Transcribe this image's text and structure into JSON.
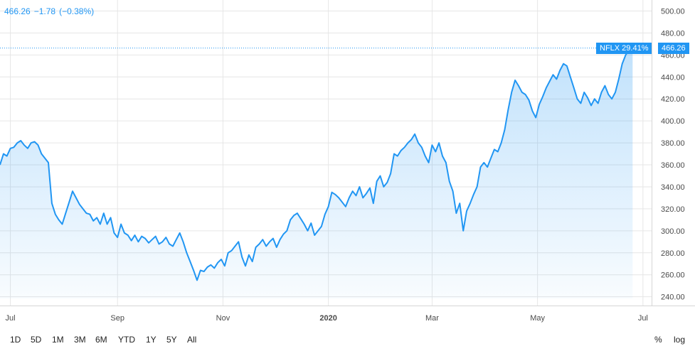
{
  "legend": {
    "last_price": "466.26",
    "change": "−1.78",
    "change_pct": "(−0.38%)"
  },
  "tags": {
    "symbol_label": "NFLX 29.41%",
    "price_label": "466.26"
  },
  "colors": {
    "line": "#2196f3",
    "fill": "#2196f3",
    "grid": "#e6e6e6",
    "tag_bg": "#2196f3"
  },
  "toolbar": {
    "ranges": [
      "1D",
      "5D",
      "1M",
      "3M",
      "6M",
      "YTD",
      "1Y",
      "5Y",
      "All"
    ],
    "percent_label": "%",
    "log_label": "log"
  },
  "chart_data": {
    "type": "area",
    "ylim": [
      232,
      510
    ],
    "xlim": [
      "2019-06-25",
      "2020-07-06"
    ],
    "price_axis_ticks": [
      "500.00",
      "480.00",
      "460.00",
      "440.00",
      "420.00",
      "400.00",
      "380.00",
      "360.00",
      "340.00",
      "320.00",
      "300.00",
      "280.00",
      "260.00",
      "240.00"
    ],
    "price_axis_values": [
      500,
      480,
      460,
      440,
      420,
      400,
      380,
      360,
      340,
      320,
      300,
      280,
      260,
      240
    ],
    "time_axis_ticks": [
      {
        "label": "Jul",
        "date": "2019-07-01",
        "bold": false
      },
      {
        "label": "Sep",
        "date": "2019-09-01",
        "bold": false
      },
      {
        "label": "Nov",
        "date": "2019-11-01",
        "bold": false
      },
      {
        "label": "2020",
        "date": "2020-01-01",
        "bold": true
      },
      {
        "label": "Mar",
        "date": "2020-03-01",
        "bold": false
      },
      {
        "label": "May",
        "date": "2020-05-01",
        "bold": false
      },
      {
        "label": "Jul",
        "date": "2020-07-01",
        "bold": false
      }
    ],
    "last_value": 466.26,
    "series": [
      {
        "points": [
          [
            "2019-06-25",
            360
          ],
          [
            "2019-06-27",
            370
          ],
          [
            "2019-06-29",
            368
          ],
          [
            "2019-07-01",
            375
          ],
          [
            "2019-07-03",
            376
          ],
          [
            "2019-07-05",
            380
          ],
          [
            "2019-07-07",
            382
          ],
          [
            "2019-07-09",
            378
          ],
          [
            "2019-07-11",
            375
          ],
          [
            "2019-07-13",
            380
          ],
          [
            "2019-07-15",
            381
          ],
          [
            "2019-07-17",
            378
          ],
          [
            "2019-07-19",
            370
          ],
          [
            "2019-07-21",
            366
          ],
          [
            "2019-07-23",
            362
          ],
          [
            "2019-07-25",
            325
          ],
          [
            "2019-07-27",
            315
          ],
          [
            "2019-07-29",
            310
          ],
          [
            "2019-07-31",
            306
          ],
          [
            "2019-08-02",
            316
          ],
          [
            "2019-08-04",
            326
          ],
          [
            "2019-08-06",
            336
          ],
          [
            "2019-08-08",
            330
          ],
          [
            "2019-08-10",
            324
          ],
          [
            "2019-08-12",
            320
          ],
          [
            "2019-08-14",
            316
          ],
          [
            "2019-08-16",
            315
          ],
          [
            "2019-08-18",
            309
          ],
          [
            "2019-08-20",
            312
          ],
          [
            "2019-08-22",
            306
          ],
          [
            "2019-08-24",
            316
          ],
          [
            "2019-08-26",
            306
          ],
          [
            "2019-08-28",
            312
          ],
          [
            "2019-08-30",
            298
          ],
          [
            "2019-09-01",
            294
          ],
          [
            "2019-09-03",
            306
          ],
          [
            "2019-09-05",
            298
          ],
          [
            "2019-09-07",
            296
          ],
          [
            "2019-09-09",
            291
          ],
          [
            "2019-09-11",
            296
          ],
          [
            "2019-09-13",
            290
          ],
          [
            "2019-09-15",
            295
          ],
          [
            "2019-09-17",
            293
          ],
          [
            "2019-09-19",
            289
          ],
          [
            "2019-09-21",
            292
          ],
          [
            "2019-09-23",
            295
          ],
          [
            "2019-09-25",
            288
          ],
          [
            "2019-09-27",
            290
          ],
          [
            "2019-09-29",
            294
          ],
          [
            "2019-10-01",
            288
          ],
          [
            "2019-10-03",
            286
          ],
          [
            "2019-10-05",
            292
          ],
          [
            "2019-10-07",
            298
          ],
          [
            "2019-10-09",
            290
          ],
          [
            "2019-10-11",
            280
          ],
          [
            "2019-10-13",
            272
          ],
          [
            "2019-10-15",
            264
          ],
          [
            "2019-10-17",
            255
          ],
          [
            "2019-10-19",
            264
          ],
          [
            "2019-10-21",
            263
          ],
          [
            "2019-10-23",
            267
          ],
          [
            "2019-10-25",
            269
          ],
          [
            "2019-10-27",
            266
          ],
          [
            "2019-10-29",
            271
          ],
          [
            "2019-10-31",
            274
          ],
          [
            "2019-11-02",
            268
          ],
          [
            "2019-11-04",
            280
          ],
          [
            "2019-11-06",
            282
          ],
          [
            "2019-11-08",
            286
          ],
          [
            "2019-11-10",
            290
          ],
          [
            "2019-11-12",
            276
          ],
          [
            "2019-11-14",
            268
          ],
          [
            "2019-11-16",
            278
          ],
          [
            "2019-11-18",
            272
          ],
          [
            "2019-11-20",
            285
          ],
          [
            "2019-11-22",
            288
          ],
          [
            "2019-11-24",
            292
          ],
          [
            "2019-11-26",
            286
          ],
          [
            "2019-11-28",
            290
          ],
          [
            "2019-11-30",
            293
          ],
          [
            "2019-12-02",
            285
          ],
          [
            "2019-12-04",
            292
          ],
          [
            "2019-12-06",
            297
          ],
          [
            "2019-12-08",
            300
          ],
          [
            "2019-12-10",
            310
          ],
          [
            "2019-12-12",
            314
          ],
          [
            "2019-12-14",
            316
          ],
          [
            "2019-12-16",
            311
          ],
          [
            "2019-12-18",
            306
          ],
          [
            "2019-12-20",
            300
          ],
          [
            "2019-12-22",
            307
          ],
          [
            "2019-12-24",
            296
          ],
          [
            "2019-12-26",
            300
          ],
          [
            "2019-12-28",
            304
          ],
          [
            "2019-12-30",
            315
          ],
          [
            "2020-01-01",
            322
          ],
          [
            "2020-01-03",
            335
          ],
          [
            "2020-01-05",
            333
          ],
          [
            "2020-01-07",
            330
          ],
          [
            "2020-01-09",
            326
          ],
          [
            "2020-01-11",
            322
          ],
          [
            "2020-01-13",
            330
          ],
          [
            "2020-01-15",
            336
          ],
          [
            "2020-01-17",
            332
          ],
          [
            "2020-01-19",
            340
          ],
          [
            "2020-01-21",
            330
          ],
          [
            "2020-01-23",
            334
          ],
          [
            "2020-01-25",
            339
          ],
          [
            "2020-01-27",
            325
          ],
          [
            "2020-01-29",
            345
          ],
          [
            "2020-01-31",
            350
          ],
          [
            "2020-02-02",
            340
          ],
          [
            "2020-02-04",
            344
          ],
          [
            "2020-02-06",
            352
          ],
          [
            "2020-02-08",
            370
          ],
          [
            "2020-02-10",
            368
          ],
          [
            "2020-02-12",
            373
          ],
          [
            "2020-02-14",
            376
          ],
          [
            "2020-02-16",
            380
          ],
          [
            "2020-02-18",
            383
          ],
          [
            "2020-02-20",
            388
          ],
          [
            "2020-02-22",
            380
          ],
          [
            "2020-02-24",
            376
          ],
          [
            "2020-02-26",
            368
          ],
          [
            "2020-02-28",
            362
          ],
          [
            "2020-03-01",
            378
          ],
          [
            "2020-03-03",
            372
          ],
          [
            "2020-03-05",
            380
          ],
          [
            "2020-03-07",
            368
          ],
          [
            "2020-03-09",
            362
          ],
          [
            "2020-03-11",
            345
          ],
          [
            "2020-03-13",
            336
          ],
          [
            "2020-03-15",
            316
          ],
          [
            "2020-03-17",
            325
          ],
          [
            "2020-03-19",
            300
          ],
          [
            "2020-03-21",
            318
          ],
          [
            "2020-03-23",
            325
          ],
          [
            "2020-03-25",
            333
          ],
          [
            "2020-03-27",
            340
          ],
          [
            "2020-03-29",
            358
          ],
          [
            "2020-03-31",
            362
          ],
          [
            "2020-04-02",
            358
          ],
          [
            "2020-04-04",
            366
          ],
          [
            "2020-04-06",
            374
          ],
          [
            "2020-04-08",
            372
          ],
          [
            "2020-04-10",
            380
          ],
          [
            "2020-04-12",
            392
          ],
          [
            "2020-04-14",
            410
          ],
          [
            "2020-04-16",
            426
          ],
          [
            "2020-04-18",
            437
          ],
          [
            "2020-04-20",
            432
          ],
          [
            "2020-04-22",
            426
          ],
          [
            "2020-04-24",
            424
          ],
          [
            "2020-04-26",
            419
          ],
          [
            "2020-04-28",
            409
          ],
          [
            "2020-04-30",
            403
          ],
          [
            "2020-05-02",
            415
          ],
          [
            "2020-05-04",
            422
          ],
          [
            "2020-05-06",
            430
          ],
          [
            "2020-05-08",
            436
          ],
          [
            "2020-05-10",
            442
          ],
          [
            "2020-05-12",
            438
          ],
          [
            "2020-05-14",
            446
          ],
          [
            "2020-05-16",
            452
          ],
          [
            "2020-05-18",
            450
          ],
          [
            "2020-05-20",
            440
          ],
          [
            "2020-05-22",
            430
          ],
          [
            "2020-05-24",
            420
          ],
          [
            "2020-05-26",
            416
          ],
          [
            "2020-05-28",
            426
          ],
          [
            "2020-05-30",
            421
          ],
          [
            "2020-06-01",
            414
          ],
          [
            "2020-06-03",
            420
          ],
          [
            "2020-06-05",
            416
          ],
          [
            "2020-06-07",
            426
          ],
          [
            "2020-06-09",
            432
          ],
          [
            "2020-06-11",
            424
          ],
          [
            "2020-06-13",
            420
          ],
          [
            "2020-06-15",
            426
          ],
          [
            "2020-06-17",
            438
          ],
          [
            "2020-06-19",
            452
          ],
          [
            "2020-06-21",
            460
          ],
          [
            "2020-06-23",
            465
          ],
          [
            "2020-06-25",
            466.26
          ]
        ]
      }
    ]
  }
}
